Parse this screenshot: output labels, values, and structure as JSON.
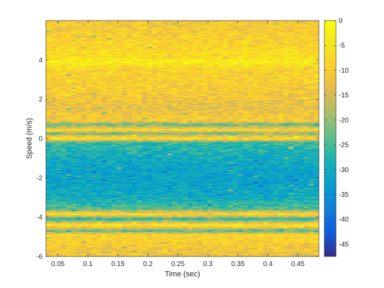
{
  "chart_data": {
    "type": "heatmap",
    "title": "",
    "xlabel": "Time (sec)",
    "ylabel": "Speed (m/s)",
    "xlim": [
      0.03,
      0.485
    ],
    "ylim": [
      -6,
      6
    ],
    "x_ticks": [
      0.05,
      0.1,
      0.15,
      0.2,
      0.25,
      0.3,
      0.35,
      0.4,
      0.45
    ],
    "x_tick_labels": [
      "0.05",
      "0.1",
      "0.15",
      "0.2",
      "0.25",
      "0.3",
      "0.35",
      "0.4",
      "0.45"
    ],
    "y_ticks": [
      -6,
      -4,
      -2,
      0,
      2,
      4
    ],
    "y_tick_labels": [
      "-6",
      "-4",
      "-2",
      "0",
      "2",
      "4"
    ],
    "colorbar": {
      "colormap": "parula",
      "clim": [
        -47.5,
        0
      ],
      "ticks": [
        0,
        -5,
        -10,
        -15,
        -20,
        -25,
        -30,
        -35,
        -40,
        -45
      ],
      "tick_labels": [
        "0",
        "-5",
        "-10",
        "-15",
        "-20",
        "-25",
        "-30",
        "-35",
        "-40",
        "-45"
      ]
    },
    "grid": false,
    "speed_profile_db": [
      {
        "speed": 5.9,
        "level": -11
      },
      {
        "speed": 5.0,
        "level": -9
      },
      {
        "speed": 4.2,
        "level": -7
      },
      {
        "speed": 3.9,
        "level": -3
      },
      {
        "speed": 3.5,
        "level": -9
      },
      {
        "speed": 2.5,
        "level": -10
      },
      {
        "speed": 1.5,
        "level": -13
      },
      {
        "speed": 0.9,
        "level": -10
      },
      {
        "speed": 0.7,
        "level": -24
      },
      {
        "speed": 0.45,
        "level": -7
      },
      {
        "speed": 0.25,
        "level": -22
      },
      {
        "speed": 0.0,
        "level": -5
      },
      {
        "speed": -0.2,
        "level": -26
      },
      {
        "speed": -1.0,
        "level": -30
      },
      {
        "speed": -2.0,
        "level": -32
      },
      {
        "speed": -3.0,
        "level": -30
      },
      {
        "speed": -3.6,
        "level": -24
      },
      {
        "speed": -3.85,
        "level": -6
      },
      {
        "speed": -4.1,
        "level": -28
      },
      {
        "speed": -4.4,
        "level": -4
      },
      {
        "speed": -4.7,
        "level": -24
      },
      {
        "speed": -4.9,
        "level": -8
      },
      {
        "speed": -5.5,
        "level": -11
      },
      {
        "speed": -6.0,
        "level": -12
      }
    ]
  }
}
